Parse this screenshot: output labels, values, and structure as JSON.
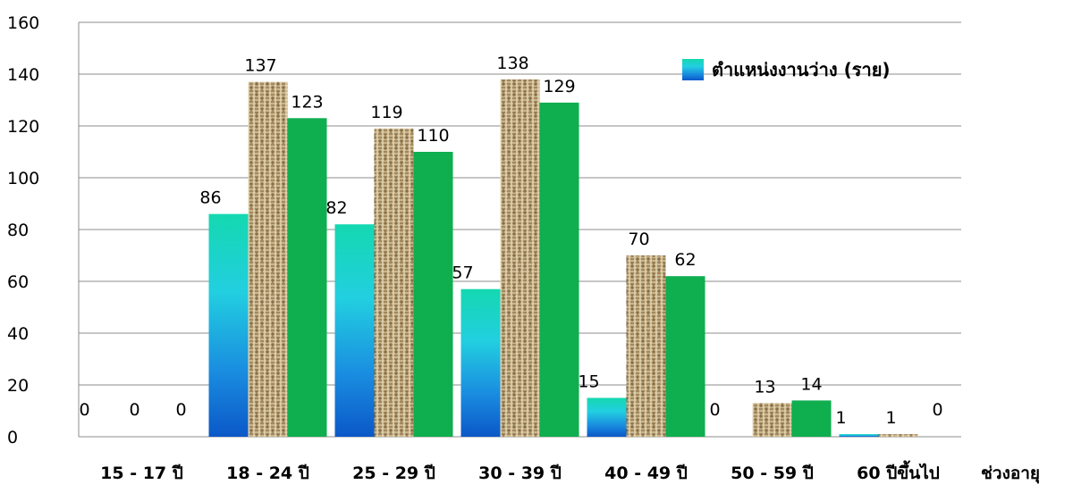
{
  "chart_data": {
    "type": "bar",
    "categories": [
      "15 - 17 ปี",
      "18 - 24 ปี",
      "25 - 29 ปี",
      "30 - 39 ปี",
      "40 - 49 ปี",
      "50 - 59 ปี",
      "60 ปีขึ้นไป"
    ],
    "xlabel": "ช่วงอายุ",
    "ylabel": "",
    "ylim": [
      0,
      160
    ],
    "yticks": [
      0,
      20,
      40,
      60,
      80,
      100,
      120,
      140,
      160
    ],
    "grid": true,
    "legend": {
      "position": "top-right",
      "entries": [
        "ตำแหน่งงานว่าง (ราย)"
      ]
    },
    "series": [
      {
        "name": "ตำแหน่งงานว่าง (ราย)",
        "values": [
          0,
          86,
          82,
          57,
          15,
          0,
          1
        ],
        "color": "#1f8fd8"
      },
      {
        "values": [
          0,
          137,
          119,
          138,
          70,
          13,
          1
        ],
        "color": "#b9a47a"
      },
      {
        "values": [
          0,
          123,
          110,
          129,
          62,
          14,
          0
        ],
        "color": "#0fae4f"
      }
    ]
  }
}
